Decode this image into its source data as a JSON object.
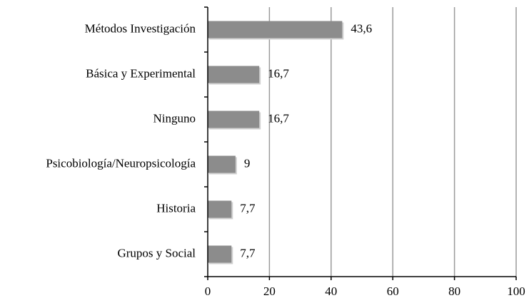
{
  "chart_data": {
    "type": "bar",
    "orientation": "horizontal",
    "categories": [
      "Métodos Investigación",
      "Básica y Experimental",
      "Ninguno",
      "Psicobiología/Neuropsicología",
      "Historia",
      "Grupos y Social"
    ],
    "values": [
      43.6,
      16.7,
      16.7,
      9,
      7.7,
      7.7
    ],
    "value_labels": [
      "43,6",
      "16,7",
      "16,7",
      "9",
      "7,7",
      "7,7"
    ],
    "color": "#8c8c8c",
    "xlim": [
      0,
      100
    ],
    "xticks": [
      0,
      20,
      40,
      60,
      80,
      100
    ],
    "grid": true
  }
}
